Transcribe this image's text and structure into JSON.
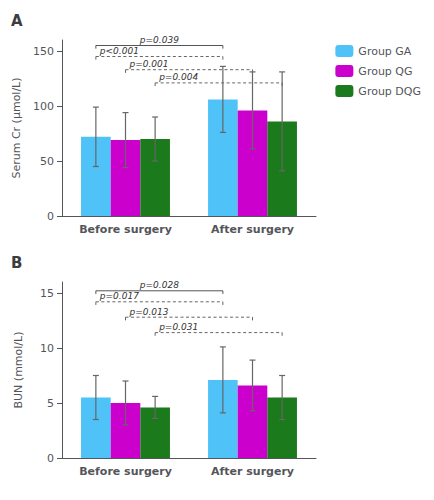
{
  "chart_data": [
    {
      "type": "bar",
      "title": "A",
      "ylabel": "Serum Cr (μmol/L)",
      "categories": [
        "Before surgery",
        "After surgery"
      ],
      "series": [
        {
          "name": "Group GA",
          "color": "#4FC3F7",
          "values": [
            72,
            106
          ],
          "errors": [
            27,
            30
          ]
        },
        {
          "name": "Group QG",
          "color": "#CC00CC",
          "values": [
            69,
            96
          ],
          "errors": [
            25,
            35
          ]
        },
        {
          "name": "Group DQG",
          "color": "#1B7A1B",
          "values": [
            70,
            86
          ],
          "errors": [
            20,
            45
          ]
        }
      ],
      "ylim": [
        0,
        160
      ],
      "yticks": [
        0,
        50,
        100,
        150
      ],
      "grid": false,
      "legend": "right",
      "annotations": [
        {
          "text": "p<0.001",
          "from": [
            "Group GA",
            "Before surgery"
          ],
          "to": [
            "Group GA",
            "After surgery"
          ],
          "y": 145,
          "line_style": "dashed"
        },
        {
          "text": "p=0.001",
          "from": [
            "Group QG",
            "Before surgery"
          ],
          "to": [
            "Group QG",
            "After surgery"
          ],
          "y": 133,
          "line_style": "dashed"
        },
        {
          "text": "p=0.004",
          "from": [
            "Group DQG",
            "Before surgery"
          ],
          "to": [
            "Group DQG",
            "After surgery"
          ],
          "y": 121,
          "line_style": "dashed"
        },
        {
          "text": "p=0.039",
          "from": [
            "Group GA",
            "Before surgery"
          ],
          "to": [
            "Group GA",
            "After surgery"
          ],
          "y": 155,
          "line_style": "solid"
        }
      ]
    },
    {
      "type": "bar",
      "title": "B",
      "ylabel": "BUN (mmol/L)",
      "categories": [
        "Before surgery",
        "After surgery"
      ],
      "series": [
        {
          "name": "Group GA",
          "color": "#4FC3F7",
          "values": [
            5.5,
            7.1
          ],
          "errors": [
            2.0,
            3.0
          ]
        },
        {
          "name": "Group QG",
          "color": "#CC00CC",
          "values": [
            5.0,
            6.6
          ],
          "errors": [
            2.0,
            2.3
          ]
        },
        {
          "name": "Group DQG",
          "color": "#1B7A1B",
          "values": [
            4.6,
            5.5
          ],
          "errors": [
            1.0,
            2.0
          ]
        }
      ],
      "ylim": [
        0,
        16
      ],
      "yticks": [
        0,
        5,
        10,
        15
      ],
      "grid": false,
      "annotations": [
        {
          "text": "p=0.017",
          "from": [
            "Group GA",
            "Before surgery"
          ],
          "to": [
            "Group GA",
            "After surgery"
          ],
          "y": 14.2,
          "line_style": "dashed"
        },
        {
          "text": "p=0.013",
          "from": [
            "Group QG",
            "Before surgery"
          ],
          "to": [
            "Group QG",
            "After surgery"
          ],
          "y": 12.8,
          "line_style": "dashed"
        },
        {
          "text": "p=0.031",
          "from": [
            "Group DQG",
            "Before surgery"
          ],
          "to": [
            "Group DQG",
            "After surgery"
          ],
          "y": 11.4,
          "line_style": "dashed"
        },
        {
          "text": "p=0.028",
          "from": [
            "Group GA",
            "Before surgery"
          ],
          "to": [
            "Group GA",
            "After surgery"
          ],
          "y": 15.2,
          "line_style": "solid"
        }
      ]
    }
  ]
}
